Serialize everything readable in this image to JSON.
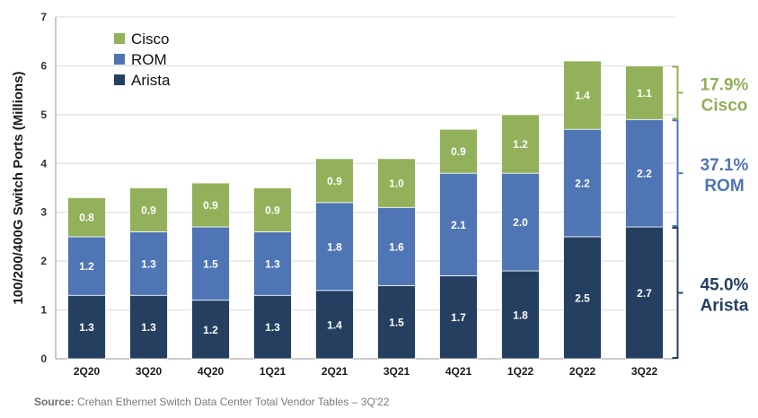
{
  "chart_data": {
    "type": "bar",
    "stacked": true,
    "title": "",
    "xlabel": "",
    "ylabel": "100/200/400G Switch Ports (Millions)",
    "ylim": [
      0,
      7
    ],
    "yticks": [
      0,
      1,
      2,
      3,
      4,
      5,
      6,
      7
    ],
    "grid": true,
    "legend_position": "top-left",
    "categories": [
      "2Q20",
      "3Q20",
      "4Q20",
      "1Q21",
      "2Q21",
      "3Q21",
      "4Q21",
      "1Q22",
      "2Q22",
      "3Q22"
    ],
    "series": [
      {
        "name": "Arista",
        "color": "#243f60",
        "values": [
          1.3,
          1.3,
          1.2,
          1.3,
          1.4,
          1.5,
          1.7,
          1.8,
          2.5,
          2.7
        ]
      },
      {
        "name": "ROM",
        "color": "#4f75b5",
        "values": [
          1.2,
          1.3,
          1.5,
          1.3,
          1.8,
          1.6,
          2.1,
          2.0,
          2.2,
          2.2
        ]
      },
      {
        "name": "Cisco",
        "color": "#92b15a",
        "values": [
          0.8,
          0.9,
          0.9,
          0.9,
          0.9,
          1.0,
          0.9,
          1.2,
          1.4,
          1.1
        ]
      }
    ],
    "legend_order": [
      "Cisco",
      "ROM",
      "Arista"
    ],
    "annotations": [
      {
        "series": "Cisco",
        "share": "17.9%",
        "label": "Cisco",
        "color": "#8fb05a"
      },
      {
        "series": "ROM",
        "share": "37.1%",
        "label": "ROM",
        "color": "#4f75b5"
      },
      {
        "series": "Arista",
        "share": "45.0%",
        "label": "Arista",
        "color": "#243f60"
      }
    ]
  },
  "source": {
    "prefix": "Source:",
    "text": " Crehan Ethernet Switch Data Center Total Vendor Tables – 3Q'22"
  }
}
